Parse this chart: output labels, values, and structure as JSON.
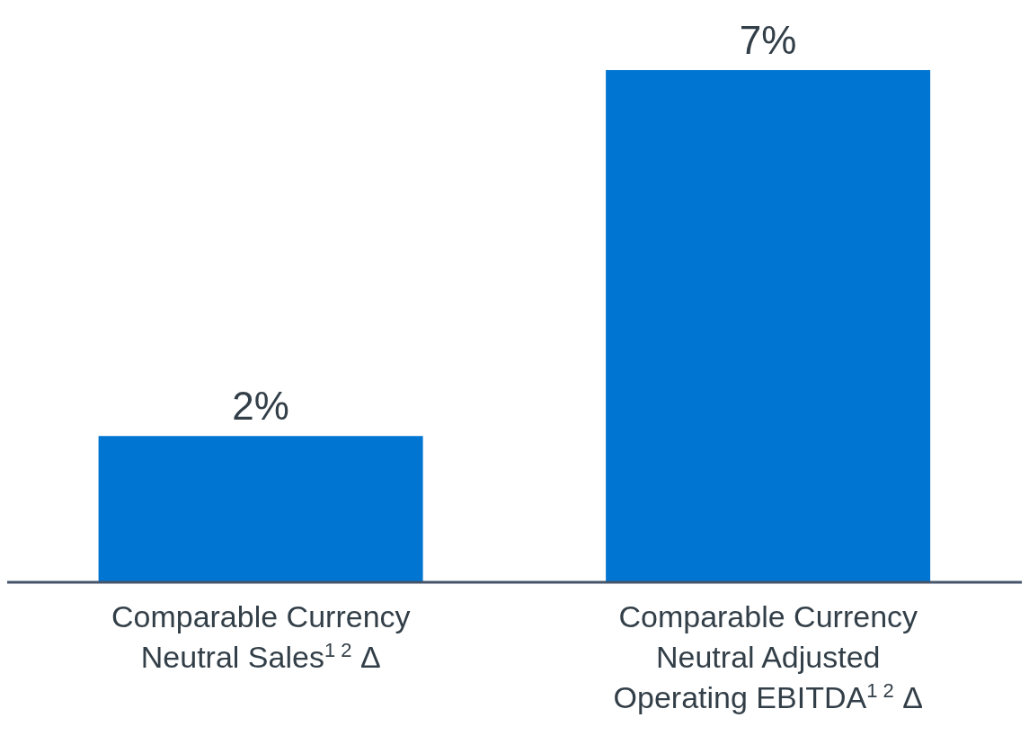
{
  "chart_data": {
    "type": "bar",
    "categories": [
      "Comparable Currency Neutral Sales$^{1 2}$ Δ",
      "Comparable Currency Neutral Adjusted Operating EBITDA$^{1 2}$ Δ"
    ],
    "values": [
      2,
      7
    ],
    "value_labels": [
      "2%",
      "7%"
    ],
    "color": "#0075d1"
  }
}
